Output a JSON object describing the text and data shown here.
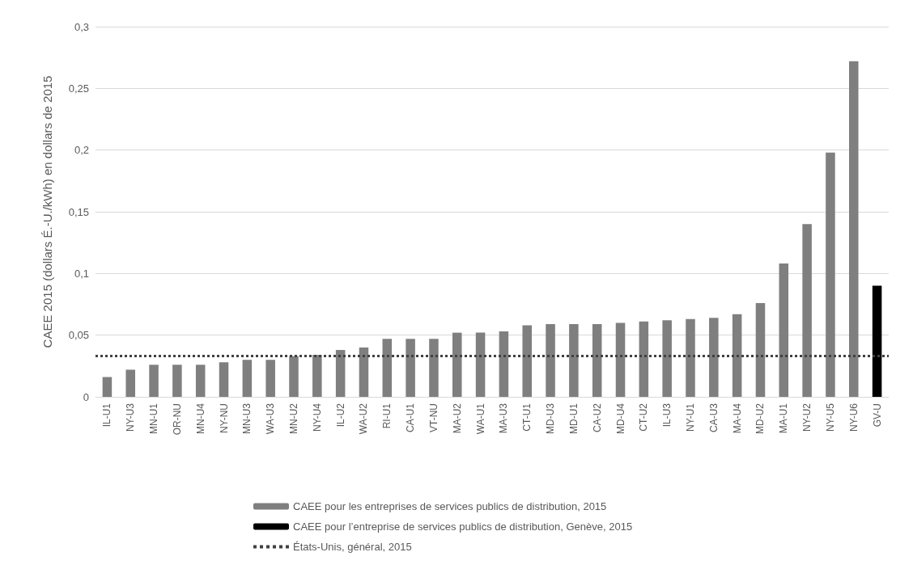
{
  "chart_data": {
    "type": "bar",
    "ylabel": "CAEE 2015 (dollars É.-U./kWh) en dollars de 2015",
    "categories": [
      "IL-U1",
      "NY-U3",
      "MN-U1",
      "OR-NU",
      "MN-U4",
      "NY-NU",
      "MN-U3",
      "WA-U3",
      "MN-U2",
      "NY-U4",
      "IL-U2",
      "WA-U2",
      "RI-U1",
      "CA-U1",
      "VT-NU",
      "MA-U2",
      "WA-U1",
      "MA-U3",
      "CT-U1",
      "MD-U3",
      "MD-U1",
      "CA-U2",
      "MD-U4",
      "CT-U2",
      "IL-U3",
      "NY-U1",
      "CA-U3",
      "MA-U4",
      "MD-U2",
      "MA-U1",
      "NY-U2",
      "NY-U5",
      "NY-U6",
      "GV-U"
    ],
    "series": [
      {
        "name": "CAEE pour les entreprises de services publics de distribution, 2015",
        "color": "#7f7f7f",
        "values": [
          0.016,
          0.022,
          0.026,
          0.026,
          0.026,
          0.028,
          0.03,
          0.03,
          0.033,
          0.034,
          0.038,
          0.04,
          0.047,
          0.047,
          0.047,
          0.052,
          0.052,
          0.053,
          0.058,
          0.059,
          0.059,
          0.059,
          0.06,
          0.061,
          0.062,
          0.063,
          0.064,
          0.067,
          0.076,
          0.108,
          0.14,
          0.198,
          0.272,
          null
        ]
      },
      {
        "name": "CAEE pour l’entreprise de services publics de distribution, Genève, 2015",
        "color": "#000000",
        "values": [
          null,
          null,
          null,
          null,
          null,
          null,
          null,
          null,
          null,
          null,
          null,
          null,
          null,
          null,
          null,
          null,
          null,
          null,
          null,
          null,
          null,
          null,
          null,
          null,
          null,
          null,
          null,
          null,
          null,
          null,
          null,
          null,
          null,
          0.09
        ]
      }
    ],
    "ref_lines": [
      {
        "axis": "y",
        "value": 0.033,
        "label": "États-Unis, général, 2015",
        "color": "#404040",
        "line_style": "dotted"
      }
    ],
    "ylim": [
      0,
      0.3
    ],
    "yticks": [
      0,
      {
        "value": 0.05,
        "label": "0,05"
      },
      {
        "value": 0.1,
        "label": "0,1"
      },
      {
        "value": 0.15,
        "label": "0,15"
      },
      {
        "value": 0.2,
        "label": "0,2"
      },
      {
        "value": 0.25,
        "label": "0,25"
      },
      {
        "value": 0.3,
        "label": "0,3"
      }
    ],
    "grid": "y",
    "legend": "bottom"
  }
}
